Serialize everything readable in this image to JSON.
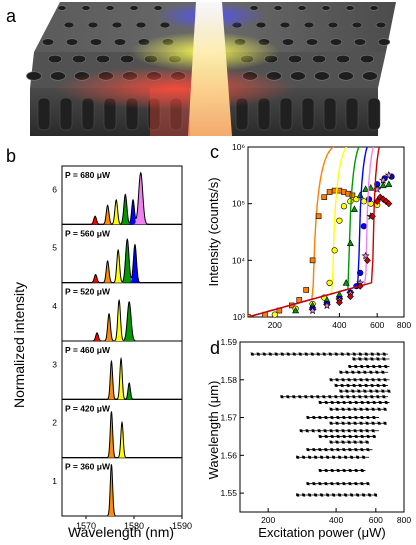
{
  "figure": {
    "panel_labels": [
      "a",
      "b",
      "c",
      "d"
    ]
  },
  "chart_data": [
    {
      "panel": "a",
      "type": "other",
      "description_colors": [
        "#3a3a3a",
        "#ff3b3b",
        "#ffff3a",
        "#4a4aff",
        "#ffffff"
      ]
    },
    {
      "panel": "b",
      "type": "area",
      "xlabel": "Wavelength (nm)",
      "ylabel": "Normalized intensity",
      "xlim": [
        1565,
        1590
      ],
      "ylim": [
        0,
        7
      ],
      "xticks": [
        1570,
        1580,
        1590
      ],
      "yticks": [
        1,
        2,
        3,
        4,
        5,
        6
      ],
      "spectra": [
        {
          "label": "P = 360 μW",
          "offset": 0,
          "peaks": [
            {
              "x": 1575.3,
              "h": 0.95,
              "w": 0.35,
              "color": "#ff8c00"
            }
          ]
        },
        {
          "label": "P = 420 μW",
          "offset": 1,
          "peaks": [
            {
              "x": 1575.3,
              "h": 0.85,
              "w": 0.35,
              "color": "#ff8c00"
            },
            {
              "x": 1577.5,
              "h": 0.65,
              "w": 0.35,
              "color": "#ffff00"
            }
          ]
        },
        {
          "label": "P = 460 μW",
          "offset": 2,
          "peaks": [
            {
              "x": 1575.3,
              "h": 0.7,
              "w": 0.35,
              "color": "#ff8c00"
            },
            {
              "x": 1577.3,
              "h": 0.75,
              "w": 0.35,
              "color": "#ffff00"
            },
            {
              "x": 1579.0,
              "h": 0.3,
              "w": 0.35,
              "color": "#009900"
            }
          ]
        },
        {
          "label": "P = 520 μW",
          "offset": 3,
          "peaks": [
            {
              "x": 1572.3,
              "h": 0.15,
              "w": 0.4,
              "color": "#ff0000"
            },
            {
              "x": 1574.8,
              "h": 0.5,
              "w": 0.4,
              "color": "#ff8c00"
            },
            {
              "x": 1576.9,
              "h": 0.75,
              "w": 0.4,
              "color": "#ffff00"
            },
            {
              "x": 1579.0,
              "h": 0.72,
              "w": 0.55,
              "color": "#009900"
            }
          ]
        },
        {
          "label": "P = 560 μW",
          "offset": 4,
          "peaks": [
            {
              "x": 1572.0,
              "h": 0.15,
              "w": 0.4,
              "color": "#ff0000"
            },
            {
              "x": 1574.5,
              "h": 0.4,
              "w": 0.4,
              "color": "#ff8c00"
            },
            {
              "x": 1576.7,
              "h": 0.6,
              "w": 0.4,
              "color": "#ffff00"
            },
            {
              "x": 1578.6,
              "h": 0.8,
              "w": 0.5,
              "color": "#009900"
            },
            {
              "x": 1580.2,
              "h": 0.7,
              "w": 0.45,
              "color": "#0000ff"
            }
          ]
        },
        {
          "label": "P = 680 μW",
          "offset": 5,
          "peaks": [
            {
              "x": 1571.9,
              "h": 0.15,
              "w": 0.4,
              "color": "#ff0000"
            },
            {
              "x": 1574.5,
              "h": 0.35,
              "w": 0.4,
              "color": "#ff8c00"
            },
            {
              "x": 1576.3,
              "h": 0.45,
              "w": 0.4,
              "color": "#ffff00"
            },
            {
              "x": 1578.2,
              "h": 0.55,
              "w": 0.45,
              "color": "#009900"
            },
            {
              "x": 1579.8,
              "h": 0.45,
              "w": 0.4,
              "color": "#0000ff"
            },
            {
              "x": 1581.4,
              "h": 0.95,
              "w": 0.6,
              "color": "#ee82ee"
            }
          ]
        }
      ]
    },
    {
      "panel": "c",
      "type": "scatter",
      "xlabel": "",
      "ylabel": "Intensity (counts/s)",
      "yscale": "log",
      "xscale": "log",
      "xlim": [
        150,
        800
      ],
      "ylim": [
        1000,
        1000000
      ],
      "xticks": [
        200,
        400,
        600,
        800
      ],
      "yticks": [
        1000,
        10000,
        100000,
        1000000
      ],
      "ytick_labels": [
        "10³",
        "10⁴",
        "10⁵",
        "10⁶"
      ],
      "series": [
        {
          "color": "#ff7f00",
          "marker": "square",
          "threshold": 300,
          "x": [
            150,
            180,
            210,
            240,
            260,
            280,
            300,
            320,
            340,
            360,
            380,
            400,
            420,
            440,
            460
          ],
          "y": [
            1000,
            1100,
            1300,
            1600,
            2000,
            3000,
            10000,
            60000,
            130000,
            160000,
            170000,
            170000,
            160000,
            150000,
            140000
          ]
        },
        {
          "color": "#ffff00",
          "marker": "circle",
          "threshold": 370,
          "x": [
            200,
            250,
            300,
            340,
            360,
            380,
            400,
            420,
            450,
            480,
            520,
            560,
            600
          ],
          "y": [
            1100,
            1400,
            1700,
            2200,
            4000,
            15000,
            50000,
            90000,
            110000,
            120000,
            110000,
            100000,
            95000
          ]
        },
        {
          "color": "#009900",
          "marker": "triangle",
          "threshold": 440,
          "x": [
            250,
            300,
            350,
            400,
            430,
            450,
            470,
            500,
            530,
            560,
            600,
            640,
            680
          ],
          "y": [
            1300,
            1600,
            2000,
            2500,
            4000,
            20000,
            80000,
            140000,
            180000,
            190000,
            200000,
            210000,
            220000
          ]
        },
        {
          "color": "#0000ff",
          "marker": "circle",
          "threshold": 490,
          "x": [
            300,
            350,
            400,
            450,
            480,
            500,
            520,
            550,
            600,
            650,
            700
          ],
          "y": [
            1400,
            1700,
            2100,
            2700,
            3500,
            6000,
            40000,
            120000,
            220000,
            280000,
            300000
          ]
        },
        {
          "color": "#ee82ee",
          "marker": "star",
          "threshold": 530,
          "x": [
            300,
            350,
            400,
            450,
            500,
            530,
            560,
            600,
            640,
            680
          ],
          "y": [
            1300,
            1600,
            2000,
            2600,
            4000,
            12000,
            60000,
            180000,
            260000,
            320000
          ]
        },
        {
          "color": "#cc0000",
          "marker": "diamond",
          "threshold": 570,
          "x": [
            400,
            450,
            500,
            540,
            570,
            600,
            620,
            640,
            660,
            680
          ],
          "y": [
            1800,
            2300,
            3500,
            10000,
            60000,
            110000,
            130000,
            120000,
            110000,
            100000
          ]
        }
      ]
    },
    {
      "panel": "d",
      "type": "scatter",
      "xlabel": "Excitation power (μW)",
      "ylabel": "Wavelength (μm)",
      "xscale": "log",
      "xlim": [
        150,
        800
      ],
      "ylim": [
        1.545,
        1.59
      ],
      "xticks": [
        200,
        400,
        600,
        800
      ],
      "yticks": [
        1.55,
        1.56,
        1.57,
        1.58,
        1.59
      ],
      "rows": [
        {
          "y": 1.5868,
          "xmin": 170,
          "xmax": 680
        },
        {
          "y": 1.5855,
          "xmin": 480,
          "xmax": 690
        },
        {
          "y": 1.5835,
          "xmin": 460,
          "xmax": 690
        },
        {
          "y": 1.582,
          "xmin": 420,
          "xmax": 680
        },
        {
          "y": 1.58,
          "xmin": 380,
          "xmax": 690
        },
        {
          "y": 1.5785,
          "xmin": 400,
          "xmax": 680
        },
        {
          "y": 1.577,
          "xmin": 420,
          "xmax": 690
        },
        {
          "y": 1.5755,
          "xmin": 230,
          "xmax": 680
        },
        {
          "y": 1.574,
          "xmin": 340,
          "xmax": 690
        },
        {
          "y": 1.5722,
          "xmin": 380,
          "xmax": 660
        },
        {
          "y": 1.57,
          "xmin": 300,
          "xmax": 620
        },
        {
          "y": 1.5685,
          "xmin": 380,
          "xmax": 660
        },
        {
          "y": 1.5665,
          "xmin": 280,
          "xmax": 620
        },
        {
          "y": 1.565,
          "xmin": 340,
          "xmax": 600
        },
        {
          "y": 1.5635,
          "xmin": 380,
          "xmax": 560
        },
        {
          "y": 1.5615,
          "xmin": 300,
          "xmax": 580
        },
        {
          "y": 1.5595,
          "xmin": 270,
          "xmax": 560
        },
        {
          "y": 1.556,
          "xmin": 340,
          "xmax": 540
        },
        {
          "y": 1.5525,
          "xmin": 300,
          "xmax": 560
        },
        {
          "y": 1.5495,
          "xmin": 270,
          "xmax": 600
        }
      ]
    }
  ]
}
